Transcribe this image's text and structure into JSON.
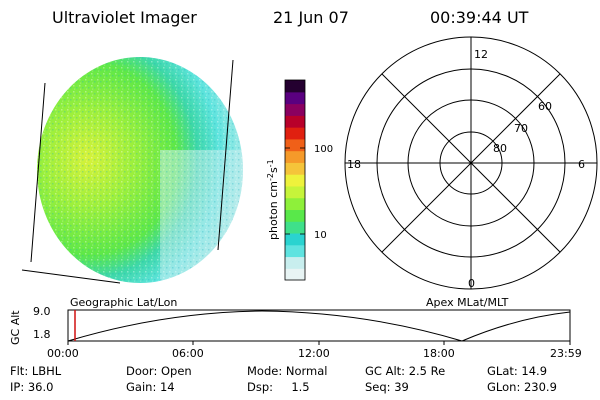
{
  "header": {
    "instrument": "Ultraviolet Imager",
    "date": "21 Jun 07",
    "time": "00:39:44 UT"
  },
  "colorbar": {
    "unit_label": "photon cm",
    "unit_exp1": "-2",
    "unit_s": "s",
    "unit_exp2": "-1",
    "tick_high": "100",
    "tick_low": "10",
    "colors": [
      "#e8f4f4",
      "#c8eeee",
      "#5fe3e0",
      "#2ad3d0",
      "#3fe08a",
      "#59e84a",
      "#8ef03a",
      "#c6f43a",
      "#eef23c",
      "#f5c43a",
      "#f59a2a",
      "#f06018",
      "#e02010",
      "#b8002a",
      "#8a0060",
      "#5a0080",
      "#240030"
    ]
  },
  "polar_plot": {
    "mlt_labels": {
      "top": "12",
      "left": "18",
      "right": "6",
      "bottom": "0"
    },
    "lat_labels": [
      "60",
      "70",
      "80"
    ]
  },
  "orbit": {
    "left_label": "Geographic Lat/Lon",
    "right_label": "Apex MLat/MLT",
    "axis_title": "GC Alt",
    "y_max": "9.0",
    "y_min": "1.8",
    "x_ticks": [
      "00:00",
      "06:00",
      "12:00",
      "18:00",
      "23:59"
    ],
    "current_marker_color": "#d01010"
  },
  "info_row1": [
    {
      "key": "Flt:",
      "val": "LBHL"
    },
    {
      "key": "Door:",
      "val": "Open"
    },
    {
      "key": "Mode:",
      "val": "Normal"
    },
    {
      "key": "GC Alt:",
      "val": "2.5 Re"
    },
    {
      "key": "GLat:",
      "val": "14.9"
    }
  ],
  "info_row2": [
    {
      "key": "IP:",
      "val": "36.0"
    },
    {
      "key": "Gain:",
      "val": "14"
    },
    {
      "key": "Dsp:",
      "val": "1.5"
    },
    {
      "key": "Seq:",
      "val": "39"
    },
    {
      "key": "GLon:",
      "val": "230.9"
    }
  ]
}
